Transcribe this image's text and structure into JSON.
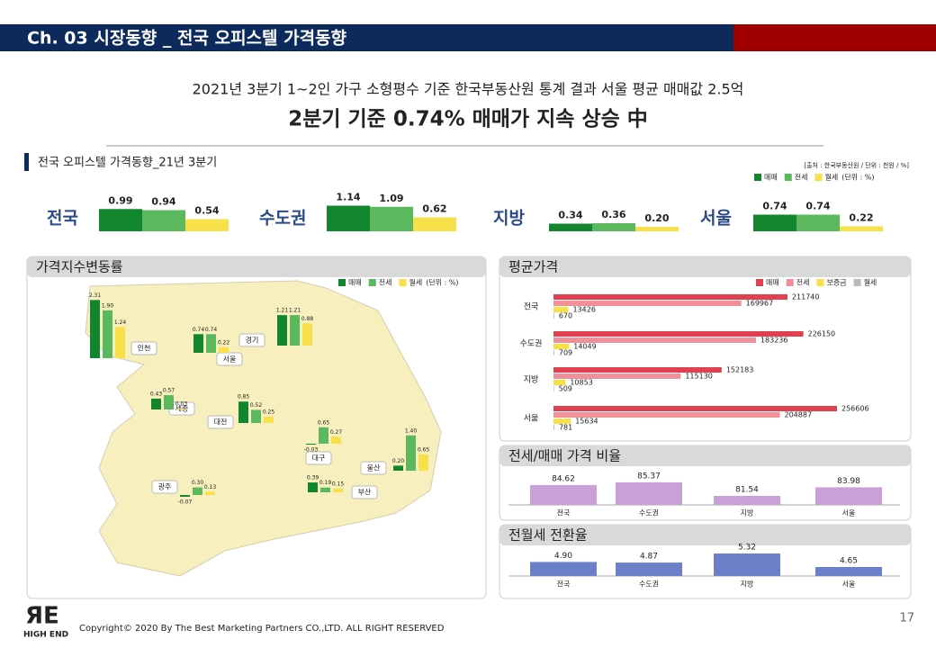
{
  "header": {
    "title": "Ch. 03 시장동향 _ 전국 오피스텔 가격동향"
  },
  "subtitle": "2021년 3분기 1~2인 가구 소형평수 기준 한국부동산원 통계 결과 서울 평균 매매값 2.5억",
  "headline": "2분기 기준 0.74% 매매가 지속 상승 中",
  "chart_data": [
    {
      "type": "grouped_bar",
      "title": "전국 오피스텔 가격동향_21년 3분기",
      "source": "[출처 : 한국부동산원 / 단위 : 천원 / %]",
      "unit": "(단위 : %)",
      "categories": [
        "전국",
        "수도권",
        "지방",
        "서울"
      ],
      "series": [
        {
          "name": "매매",
          "color": "#12862e",
          "values": [
            0.99,
            1.14,
            0.34,
            0.74
          ],
          "value_labels": [
            "0.99",
            "1.14",
            "0.34",
            "0.74"
          ]
        },
        {
          "name": "전세",
          "color": "#5cb85c",
          "values": [
            0.94,
            1.09,
            0.36,
            0.74
          ],
          "value_labels": [
            "0.94",
            "1.09",
            "0.36",
            "0.74"
          ]
        },
        {
          "name": "월세",
          "color": "#f7e04a",
          "values": [
            0.54,
            0.62,
            0.2,
            0.22
          ],
          "value_labels": [
            "0.54",
            "0.62",
            "0.20",
            "0.22"
          ]
        }
      ]
    },
    {
      "type": "map_bar",
      "title": "가격지수변동률",
      "unit": "(단위 : %)",
      "categories": [
        "인천",
        "서울",
        "경기",
        "세종",
        "대전",
        "대구",
        "울산",
        "광주",
        "부산"
      ],
      "series": [
        {
          "name": "매매",
          "color": "#12862e",
          "values": [
            2.31,
            0.74,
            1.21,
            0.43,
            0.85,
            -0.03,
            0.2,
            -0.07,
            0.39
          ],
          "value_labels": [
            "2.31",
            "0.74",
            "1.21",
            "0.43",
            "0.85",
            "-0.03",
            "0.20",
            "-0.07",
            "0.39"
          ]
        },
        {
          "name": "전세",
          "color": "#5cb85c",
          "values": [
            1.9,
            0.74,
            1.21,
            0.57,
            0.52,
            0.65,
            1.4,
            0.3,
            0.19
          ],
          "value_labels": [
            "1.90",
            "0.74",
            "1.21",
            "0.57",
            "0.52",
            "0.65",
            "1.40",
            "0.30",
            "0.19"
          ]
        },
        {
          "name": "월세",
          "color": "#f7e04a",
          "values": [
            1.24,
            0.22,
            0.88,
            0.03,
            0.25,
            0.27,
            0.65,
            0.13,
            0.15
          ],
          "value_labels": [
            "1.24",
            "0.22",
            "0.88",
            "0.03",
            "0.25",
            "0.27",
            "0.65",
            "0.13",
            "0.15"
          ]
        }
      ]
    },
    {
      "type": "hbar",
      "title": "평균가격",
      "categories": [
        "전국",
        "수도권",
        "지방",
        "서울"
      ],
      "series": [
        {
          "name": "매매",
          "color": "#e0404f",
          "values": [
            211740,
            226150,
            152183,
            256606
          ]
        },
        {
          "name": "전세",
          "color": "#f2909a",
          "values": [
            169967,
            183236,
            115130,
            204887
          ]
        },
        {
          "name": "보증금",
          "color": "#f7e04a",
          "values": [
            13426,
            14049,
            10853,
            15634
          ]
        },
        {
          "name": "월세",
          "color": "#bbbbbb",
          "values": [
            670,
            709,
            509,
            781
          ]
        }
      ]
    },
    {
      "type": "bar",
      "title": "전세/매매 가격 비율",
      "categories": [
        "전국",
        "수도권",
        "지방",
        "서울"
      ],
      "values": [
        84.62,
        85.37,
        81.54,
        83.98
      ],
      "color": "#c9a0d8"
    },
    {
      "type": "bar",
      "title": "전월세 전환율",
      "categories": [
        "전국",
        "수도권",
        "지방",
        "서울"
      ],
      "values": [
        4.9,
        4.87,
        5.32,
        4.65
      ],
      "value_labels": [
        "4.90",
        "4.87",
        "5.32",
        "4.65"
      ],
      "color": "#6b80c8"
    }
  ],
  "footer": {
    "copyright": "Copyright© 2020 By The Best Marketing Partners CO.,LTD. ALL RIGHT RESERVED",
    "page_number": "17",
    "logo": "ЯE",
    "logo_sub": "HIGH END"
  }
}
